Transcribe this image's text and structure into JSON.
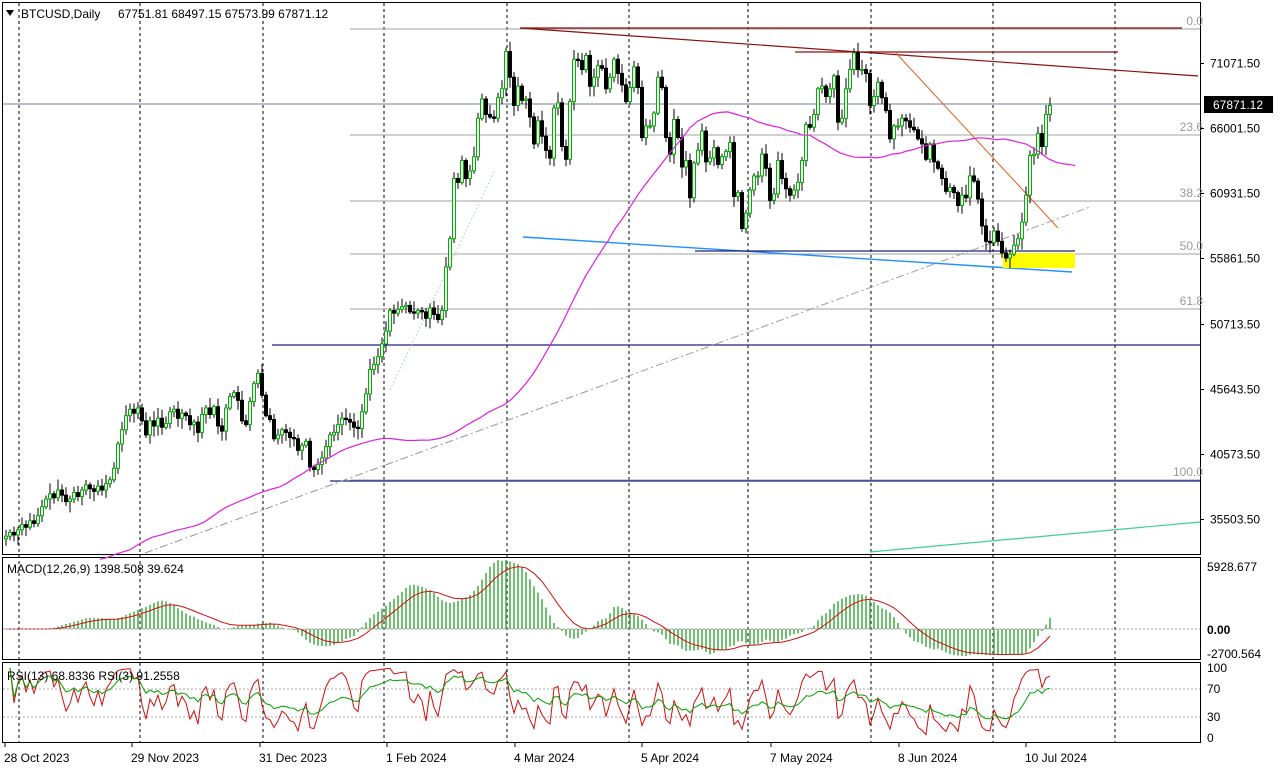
{
  "header": {
    "symbol": "BTCUSD,Daily",
    "ohlc": "67751.81 68497.15 67573.99 67871.12",
    "current_price_label": "67871.12"
  },
  "price_axis": {
    "ticks": [
      "71071.50",
      "66001.50",
      "60931.50",
      "55861.50",
      "50713.50",
      "45643.50",
      "40573.50",
      "35503.50"
    ]
  },
  "fib_labels": [
    "0.0",
    "23.6",
    "38.2",
    "50.0",
    "61.8",
    "100.0"
  ],
  "macd": {
    "label": "MACD(12,26,9) 1398.508 39.624",
    "ticks": [
      "5928.677",
      "0.00",
      "-2700.564"
    ]
  },
  "rsi": {
    "label": "RSI(13) 68.8336  RSI(3) 91.2558",
    "ticks": [
      "100",
      "70",
      "30",
      "0"
    ]
  },
  "time_axis": {
    "labels": [
      "28 Oct 2023",
      "29 Nov 2023",
      "31 Dec 2023",
      "1 Feb 2024",
      "4 Mar 2024",
      "5 Apr 2024",
      "7 May 2024",
      "8 Jun 2024",
      "10 Jul 2024"
    ]
  },
  "chart_data": {
    "type": "candlestick",
    "title": "BTCUSD,Daily",
    "ylim": [
      32000,
      73500
    ],
    "closes": [
      34200,
      34500,
      34300,
      34700,
      35100,
      34900,
      35400,
      35200,
      35800,
      36500,
      37100,
      37500,
      37200,
      37800,
      37400,
      36900,
      37100,
      37600,
      37300,
      37800,
      38200,
      37900,
      37700,
      38100,
      37800,
      38300,
      38600,
      39500,
      41400,
      42500,
      43600,
      44100,
      43800,
      44200,
      43200,
      42100,
      43200,
      42800,
      43400,
      42700,
      43000,
      43900,
      44100,
      43400,
      43800,
      43600,
      42900,
      43100,
      42300,
      43700,
      44200,
      43700,
      44300,
      42800,
      42400,
      44200,
      45100,
      45400,
      44800,
      43200,
      42900,
      44700,
      46100,
      46900,
      45200,
      43600,
      43300,
      41800,
      42100,
      42500,
      42300,
      41900,
      41800,
      40900,
      41300,
      41600,
      39600,
      39400,
      39800,
      40300,
      41200,
      42100,
      42300,
      42900,
      43400,
      43300,
      43100,
      42700,
      42600,
      43900,
      45300,
      47200,
      47600,
      48200,
      49200,
      50200,
      51800,
      51600,
      51900,
      52100,
      52200,
      51700,
      51600,
      51800,
      51700,
      51200,
      52000,
      51500,
      51100,
      51800,
      55200,
      57400,
      62100,
      61800,
      63500,
      62100,
      62700,
      63800,
      66800,
      68300,
      67100,
      66900,
      66800,
      68400,
      69100,
      72000,
      70000,
      67800,
      69300,
      68200,
      68300,
      66900,
      64800,
      66600,
      65400,
      64300,
      63700,
      67600,
      68000,
      64600,
      63600,
      68100,
      71400,
      71300,
      70600,
      71700,
      69300,
      70000,
      70900,
      70700,
      69100,
      70000,
      71400,
      70300,
      69400,
      68100,
      69200,
      70800,
      69200,
      65300,
      66200,
      66200,
      67200,
      70000,
      69200,
      65300,
      64000,
      66700,
      65300,
      63000,
      63500,
      60600,
      63300,
      64300,
      65800,
      63400,
      63700,
      64500,
      63200,
      63800,
      64200,
      64900,
      60700,
      61000,
      58200,
      59400,
      61200,
      62300,
      62300,
      64000,
      62900,
      60400,
      60900,
      63500,
      62100,
      61300,
      60800,
      61200,
      61800,
      63500,
      66300,
      66100,
      67100,
      69100,
      69300,
      68500,
      69100,
      70100,
      66500,
      66800,
      69100,
      70600,
      71900,
      70600,
      70600,
      70300,
      67800,
      68500,
      69600,
      68400,
      67400,
      65200,
      66200,
      66200,
      66800,
      66600,
      66100,
      65900,
      65200,
      64800,
      63600,
      64800,
      63400,
      62900,
      62100,
      61100,
      61400,
      61000,
      60000,
      60800,
      60600,
      62300,
      61900,
      60500,
      58400,
      57200,
      57100,
      58000,
      57200,
      56300,
      55900,
      56200,
      56900,
      57400,
      58700,
      60800,
      63900,
      64000,
      65600,
      64600,
      67100,
      67800
    ],
    "overlays": {
      "moving_average": "magenta",
      "fibonacci_levels": [
        0.0,
        23.6,
        38.2,
        50.0,
        61.8,
        100.0
      ],
      "support_zone": "yellow"
    },
    "indicators": [
      "MACD(12,26,9)",
      "RSI(13)",
      "RSI(3)"
    ]
  },
  "colors": {
    "bull_candle": "#00b000",
    "bear_candle": "#000000",
    "ma_line": "#e020e0",
    "fib_line": "#a0a0a0",
    "resistance_line": "#8b1010",
    "trend_orange": "#e06020",
    "support_blue": "#1e90ff",
    "hline_navy": "#1a237e",
    "green_trend": "#3cd28a",
    "macd_hist": "#4caf50",
    "macd_signal": "#d01010",
    "rsi13": "#00a000",
    "rsi3": "#d01010",
    "zone_yellow": "#ffff00"
  }
}
